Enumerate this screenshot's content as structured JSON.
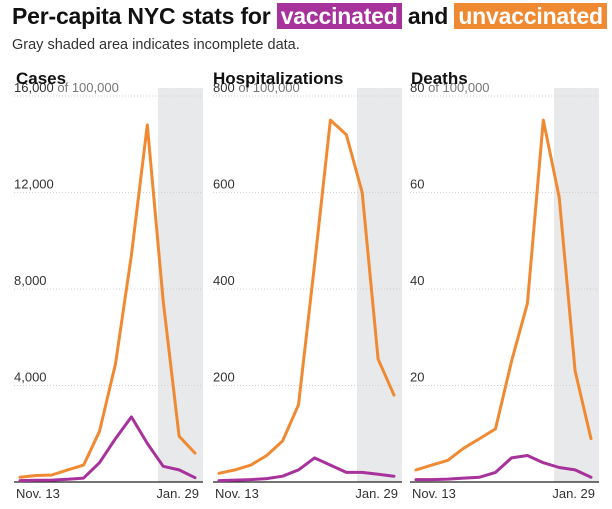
{
  "header": {
    "title_prefix": "Per-capita NYC stats for",
    "vaccinated_label": "vaccinated",
    "title_and": "and",
    "unvaccinated_label": "unvaccinated",
    "subtitle": "Gray shaded area indicates incomplete data."
  },
  "colors": {
    "vaccinated": "#a8329c",
    "unvaccinated": "#f08a32",
    "shaded": "#e8e9ea",
    "grid": "#d0d0d0"
  },
  "chart_data": [
    {
      "type": "line",
      "title": "Cases",
      "ylim": [
        0,
        16000
      ],
      "y_ticks": [
        {
          "value": 16000,
          "label": "16,000",
          "unit": "of 100,000"
        },
        {
          "value": 12000,
          "label": "12,000",
          "unit": ""
        },
        {
          "value": 8000,
          "label": "8,000",
          "unit": ""
        },
        {
          "value": 4000,
          "label": "4,000",
          "unit": ""
        }
      ],
      "x_labels": {
        "start": "Nov. 13",
        "end": "Jan. 29"
      },
      "shaded_from_index": 10,
      "grid": true,
      "series": [
        {
          "name": "unvaccinated",
          "values": [
            200,
            270,
            290,
            500,
            700,
            2100,
            4900,
            9400,
            14800,
            7500,
            1900,
            1200
          ]
        },
        {
          "name": "vaccinated",
          "values": [
            60,
            70,
            80,
            110,
            160,
            800,
            1800,
            2700,
            1600,
            650,
            500,
            180
          ]
        }
      ]
    },
    {
      "type": "line",
      "title": "Hospitalizations",
      "ylim": [
        0,
        800
      ],
      "y_ticks": [
        {
          "value": 800,
          "label": "800",
          "unit": "of 100,000"
        },
        {
          "value": 600,
          "label": "600",
          "unit": ""
        },
        {
          "value": 400,
          "label": "400",
          "unit": ""
        },
        {
          "value": 200,
          "label": "200",
          "unit": ""
        }
      ],
      "x_labels": {
        "start": "Nov. 13",
        "end": "Jan. 29"
      },
      "shaded_from_index": 10,
      "grid": true,
      "series": [
        {
          "name": "unvaccinated",
          "values": [
            18,
            25,
            35,
            55,
            85,
            160,
            450,
            750,
            720,
            600,
            255,
            180
          ]
        },
        {
          "name": "vaccinated",
          "values": [
            3,
            4,
            5,
            7,
            12,
            25,
            50,
            35,
            20,
            20,
            16,
            12
          ]
        }
      ]
    },
    {
      "type": "line",
      "title": "Deaths",
      "ylim": [
        0,
        80
      ],
      "y_ticks": [
        {
          "value": 80,
          "label": "80",
          "unit": "of 100,000"
        },
        {
          "value": 60,
          "label": "60",
          "unit": ""
        },
        {
          "value": 40,
          "label": "40",
          "unit": ""
        },
        {
          "value": 20,
          "label": "20",
          "unit": ""
        }
      ],
      "x_labels": {
        "start": "Nov. 13",
        "end": "Jan. 29"
      },
      "shaded_from_index": 10,
      "grid": true,
      "series": [
        {
          "name": "unvaccinated",
          "values": [
            2.5,
            3.5,
            4.5,
            7,
            9,
            11,
            25,
            37,
            75,
            59,
            23,
            9
          ]
        },
        {
          "name": "vaccinated",
          "values": [
            0.5,
            0.5,
            0.6,
            0.8,
            1,
            2,
            5,
            5.5,
            4,
            3,
            2.5,
            1
          ]
        }
      ]
    }
  ]
}
